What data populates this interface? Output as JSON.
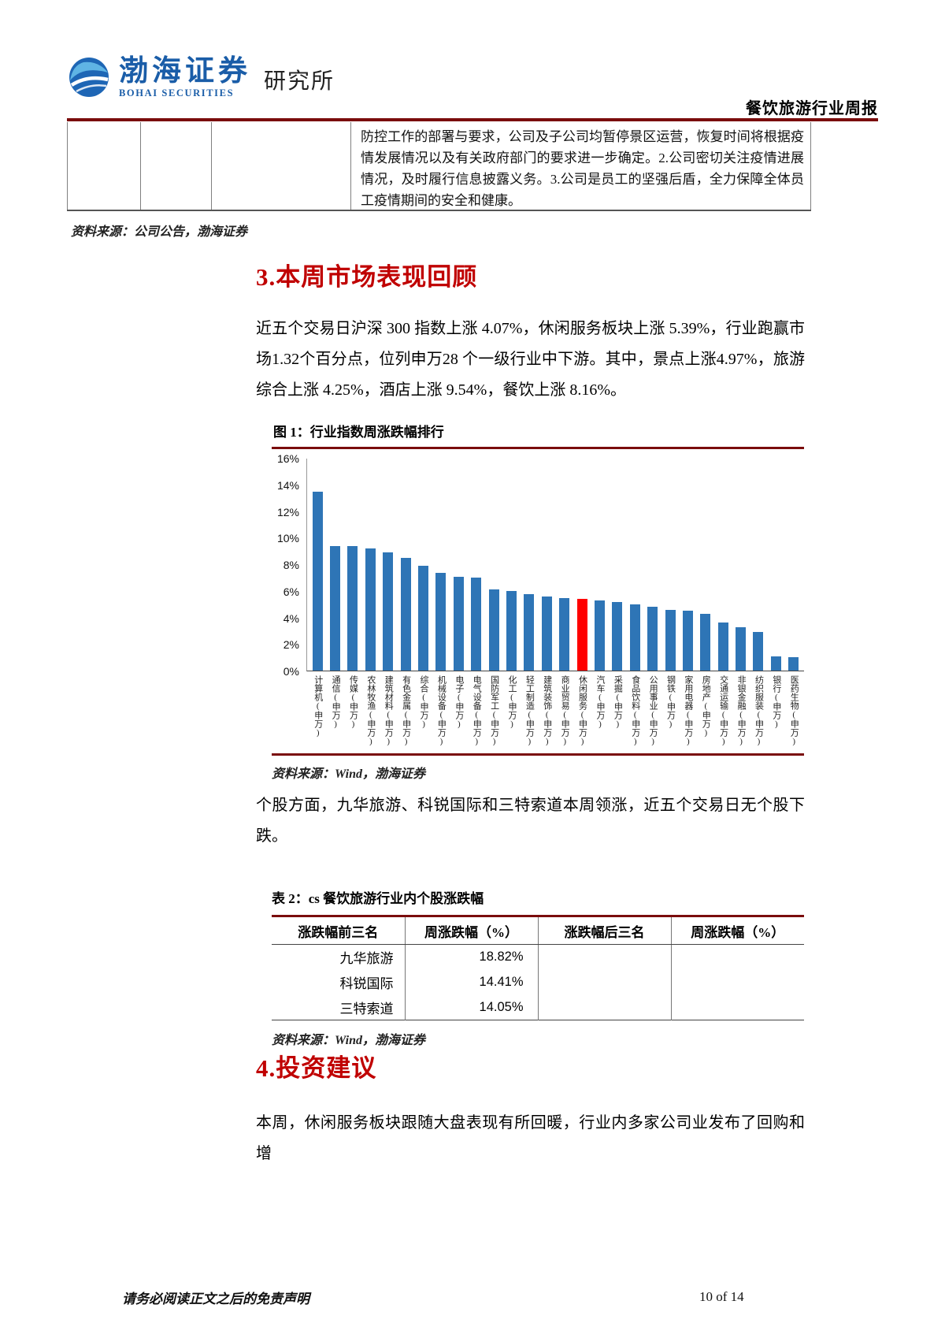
{
  "header": {
    "brand_cn": "渤海证券",
    "brand_en": "BOHAI SECURITIES",
    "dept": "研究所",
    "report_title": "餐饮旅游行业周报"
  },
  "carryover_table": {
    "cell_text": "防控工作的部署与要求，公司及子公司均暂停景区运营，恢复时间将根据疫情发展情况以及有关政府部门的要求进一步确定。2.公司密切关注疫情进展情况，及时履行信息披露义务。3.公司是员工的坚强后盾，全力保障全体员工疫情期间的安全和健康。",
    "source": "资料来源：公司公告，渤海证券"
  },
  "section3": {
    "title": "3.本周市场表现回顾",
    "paragraph": "近五个交易日沪深 300 指数上涨 4.07%，休闲服务板块上涨 5.39%，行业跑赢市场1.32个百分点，位列申万28 个一级行业中下游。其中，景点上涨4.97%，旅游综合上涨 4.25%，酒店上涨 9.54%，餐饮上涨 8.16%。"
  },
  "figure1": {
    "title": "图 1：行业指数周涨跌幅排行",
    "source": "资料来源：Wind，渤海证券"
  },
  "chart_data": {
    "type": "bar",
    "title": "行业指数周涨跌幅排行",
    "categories": [
      "计算机(申万)",
      "通信(申万)",
      "传媒(申万)",
      "农林牧渔(申万)",
      "建筑材料(申万)",
      "有色金属(申万)",
      "综合(申万)",
      "机械设备(申万)",
      "电子(申万)",
      "电气设备(申万)",
      "国防军工(申万)",
      "化工(申万)",
      "轻工制造(申万)",
      "建筑装饰(申万)",
      "商业贸易(申万)",
      "休闲服务(申万)",
      "汽车(申万)",
      "采掘(申万)",
      "食品饮料(申万)",
      "公用事业(申万)",
      "钢铁(申万)",
      "家用电器(申万)",
      "房地产(申万)",
      "交通运输(申万)",
      "非银金融(申万)",
      "纺织服装(申万)",
      "银行(申万)",
      "医药生物(申万)"
    ],
    "values": [
      13.5,
      9.4,
      9.4,
      9.2,
      8.9,
      8.5,
      7.9,
      7.4,
      7.1,
      7.0,
      6.1,
      6.0,
      5.8,
      5.6,
      5.5,
      5.39,
      5.3,
      5.2,
      5.0,
      4.8,
      4.6,
      4.5,
      4.3,
      3.6,
      3.3,
      2.9,
      1.1,
      1.0
    ],
    "highlight_index": 15,
    "bar_color": "#2E75B6",
    "highlight_color": "#FF0000",
    "ylim": [
      0,
      16
    ],
    "yticks": [
      0,
      2,
      4,
      6,
      8,
      10,
      12,
      14,
      16
    ],
    "ytick_suffix": "%",
    "xlabel": "",
    "ylabel": "",
    "grid": false,
    "legend": false
  },
  "paragraph_stocks": "个股方面，九华旅游、科锐国际和三特索道本周领涨，近五个交易日无个股下跌。",
  "table2": {
    "title": "表 2：cs 餐饮旅游行业内个股涨跌幅",
    "headers": [
      "涨跌幅前三名",
      "周涨跌幅（%）",
      "涨跌幅后三名",
      "周涨跌幅（%）"
    ],
    "rows": [
      [
        "九华旅游",
        "18.82%",
        "",
        ""
      ],
      [
        "科锐国际",
        "14.41%",
        "",
        ""
      ],
      [
        "三特索道",
        "14.05%",
        "",
        ""
      ]
    ],
    "source": "资料来源：Wind，渤海证券"
  },
  "section4": {
    "title": "4.投资建议",
    "paragraph": "本周，休闲服务板块跟随大盘表现有所回暖，行业内多家公司业发布了回购和增"
  },
  "footer": {
    "disclaimer": "请务必阅读正文之后的免责声明",
    "page": "10 of 14"
  },
  "colors": {
    "accent_dark_red": "#7A0C0C",
    "heading_red": "#C00000",
    "brand_blue": "#1A5DA8",
    "bar_blue": "#2E75B6",
    "bar_red": "#FF0000"
  }
}
